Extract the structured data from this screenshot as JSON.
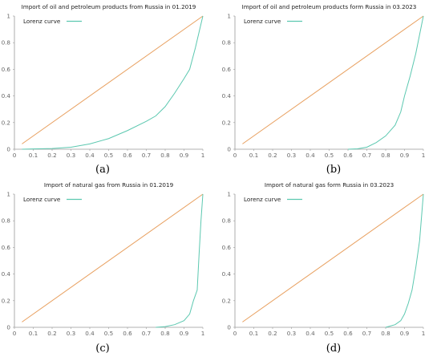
{
  "chart_data": [
    {
      "type": "line",
      "caption": "(a)",
      "title": "Import of oil and petroleum products from Russia in 01.2019",
      "legend": {
        "label": "Lorenz curve",
        "position": "top-left"
      },
      "xlim": [
        0,
        1
      ],
      "ylim": [
        0,
        1
      ],
      "xticks": [
        "0",
        "0.1",
        "0.2",
        "0.3",
        "0.4",
        "0.5",
        "0.6",
        "0.7",
        "0.8",
        "0.9",
        "1"
      ],
      "yticks": [
        "0",
        "0.2",
        "0.4",
        "0.6",
        "0.8",
        "1"
      ],
      "colors": {
        "lorenz": "#5cc8b0",
        "equality": "#e8a060"
      },
      "equality_line": {
        "x": [
          0.04,
          1
        ],
        "y": [
          0.04,
          1
        ]
      },
      "series": [
        {
          "name": "Lorenz curve",
          "x": [
            0.04,
            0.1,
            0.2,
            0.3,
            0.4,
            0.5,
            0.6,
            0.7,
            0.75,
            0.8,
            0.85,
            0.9,
            0.93,
            0.96,
            0.98,
            1.0
          ],
          "y": [
            0,
            0.002,
            0.005,
            0.015,
            0.04,
            0.08,
            0.14,
            0.21,
            0.25,
            0.32,
            0.42,
            0.53,
            0.6,
            0.76,
            0.88,
            1.0
          ]
        }
      ]
    },
    {
      "type": "line",
      "caption": "(b)",
      "title": "Import of oil and petroleum products form Russia in 03.2023",
      "legend": {
        "label": "Lorenz curve",
        "position": "top-left"
      },
      "xlim": [
        0,
        1
      ],
      "ylim": [
        0,
        1
      ],
      "xticks": [
        "0",
        "0.1",
        "0.2",
        "0.3",
        "0.4",
        "0.5",
        "0.6",
        "0.7",
        "0.8",
        "0.9",
        "1"
      ],
      "yticks": [
        "0",
        "0.2",
        "0.4",
        "0.6",
        "0.8",
        "1"
      ],
      "colors": {
        "lorenz": "#5cc8b0",
        "equality": "#e8a060"
      },
      "equality_line": {
        "x": [
          0.04,
          1
        ],
        "y": [
          0.04,
          1
        ]
      },
      "series": [
        {
          "name": "Lorenz curve",
          "x": [
            0.6,
            0.65,
            0.7,
            0.75,
            0.8,
            0.85,
            0.88,
            0.9,
            0.93,
            0.96,
            1.0
          ],
          "y": [
            0,
            0.003,
            0.015,
            0.05,
            0.1,
            0.18,
            0.28,
            0.4,
            0.55,
            0.72,
            1.0
          ]
        }
      ]
    },
    {
      "type": "line",
      "caption": "(c)",
      "title": "Import of natural gas from Russia in 01.2019",
      "legend": {
        "label": "Lorenz curve",
        "position": "top-left"
      },
      "xlim": [
        0,
        1
      ],
      "ylim": [
        0,
        1
      ],
      "xticks": [
        "0",
        "0.1",
        "0.2",
        "0.3",
        "0.4",
        "0.5",
        "0.6",
        "0.7",
        "0.8",
        "0.9",
        "1"
      ],
      "yticks": [
        "0",
        "0.2",
        "0.4",
        "0.6",
        "0.8",
        "1"
      ],
      "colors": {
        "lorenz": "#5cc8b0",
        "equality": "#e8a060"
      },
      "equality_line": {
        "x": [
          0.04,
          1
        ],
        "y": [
          0.04,
          1
        ]
      },
      "series": [
        {
          "name": "Lorenz curve",
          "x": [
            0.75,
            0.8,
            0.85,
            0.9,
            0.93,
            0.95,
            0.97,
            0.98,
            0.99,
            1.0
          ],
          "y": [
            0,
            0.005,
            0.02,
            0.05,
            0.1,
            0.2,
            0.28,
            0.55,
            0.8,
            1.0
          ]
        }
      ]
    },
    {
      "type": "line",
      "caption": "(d)",
      "title": "Import of natural gas form Russia in 03.2023",
      "legend": {
        "label": "Lorenz curve",
        "position": "top-left"
      },
      "xlim": [
        0,
        1
      ],
      "ylim": [
        0,
        1
      ],
      "xticks": [
        "0",
        "0.1",
        "0.2",
        "0.3",
        "0.4",
        "0.5",
        "0.6",
        "0.7",
        "0.8",
        "0.9",
        "1"
      ],
      "yticks": [
        "0",
        "0.2",
        "0.4",
        "0.6",
        "0.8",
        "1"
      ],
      "colors": {
        "lorenz": "#5cc8b0",
        "equality": "#e8a060"
      },
      "equality_line": {
        "x": [
          0.04,
          1
        ],
        "y": [
          0.04,
          1
        ]
      },
      "series": [
        {
          "name": "Lorenz curve",
          "x": [
            0.8,
            0.85,
            0.88,
            0.9,
            0.92,
            0.94,
            0.96,
            0.98,
            1.0
          ],
          "y": [
            0,
            0.02,
            0.05,
            0.1,
            0.18,
            0.28,
            0.45,
            0.65,
            1.0
          ]
        }
      ]
    }
  ]
}
